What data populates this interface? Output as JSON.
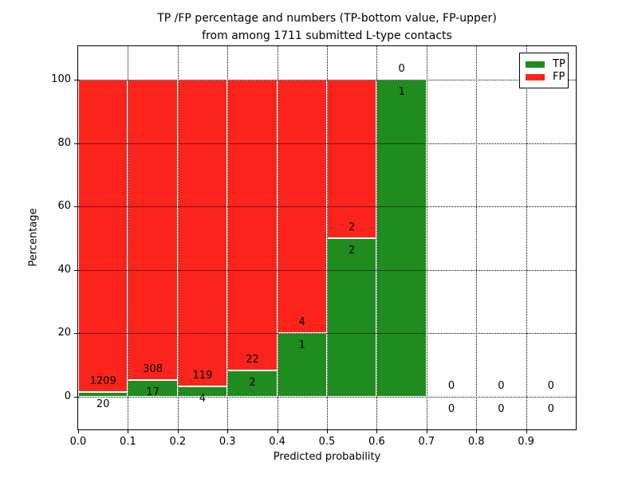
{
  "figure": {
    "title_line1": "TP /FP percentage and numbers (TP-bottom value, FP-upper)",
    "title_line2": "from among 1711 submitted L-type contacts",
    "xlabel": "Predicted probability",
    "ylabel": "Percentage"
  },
  "chart_data": {
    "type": "bar",
    "stacked": true,
    "normalized_to_percent": true,
    "title": "TP /FP percentage and numbers (TP-bottom value, FP-upper)\nfrom among 1711 submitted L-type contacts",
    "xlabel": "Predicted probability",
    "ylabel": "Percentage",
    "total_contacts": 1711,
    "x_tick_labels": [
      "0.0",
      "0.1",
      "0.2",
      "0.3",
      "0.4",
      "0.5",
      "0.6",
      "0.7",
      "0.8",
      "0.9"
    ],
    "y_tick_labels": [
      "0",
      "20",
      "40",
      "60",
      "80",
      "100"
    ],
    "y_ticks": [
      0,
      20,
      40,
      60,
      80,
      100
    ],
    "xlim": [
      0.0,
      1.0
    ],
    "ylim": [
      -10.5,
      110.5
    ],
    "grid": true,
    "legend_position": "upper right",
    "series": [
      {
        "name": "TP",
        "color": "#1e8c1e",
        "values": [
          20,
          17,
          4,
          2,
          1,
          2,
          1,
          0,
          0,
          0
        ]
      },
      {
        "name": "FP",
        "color": "#fb241c",
        "values": [
          1209,
          308,
          119,
          22,
          4,
          2,
          0,
          0,
          0,
          0
        ]
      }
    ],
    "bins": [
      {
        "range": [
          0.0,
          0.1
        ],
        "tp": 20,
        "fp": 1209
      },
      {
        "range": [
          0.1,
          0.2
        ],
        "tp": 17,
        "fp": 308
      },
      {
        "range": [
          0.2,
          0.3
        ],
        "tp": 4,
        "fp": 119
      },
      {
        "range": [
          0.3,
          0.4
        ],
        "tp": 2,
        "fp": 22
      },
      {
        "range": [
          0.4,
          0.5
        ],
        "tp": 1,
        "fp": 4
      },
      {
        "range": [
          0.5,
          0.6
        ],
        "tp": 2,
        "fp": 2
      },
      {
        "range": [
          0.6,
          0.7
        ],
        "tp": 1,
        "fp": 0
      },
      {
        "range": [
          0.7,
          0.8
        ],
        "tp": 0,
        "fp": 0
      },
      {
        "range": [
          0.8,
          0.9
        ],
        "tp": 0,
        "fp": 0
      },
      {
        "range": [
          0.9,
          1.0
        ],
        "tp": 0,
        "fp": 0
      }
    ],
    "legend": [
      {
        "label": "TP",
        "color": "#1e8c1e"
      },
      {
        "label": "FP",
        "color": "#fb241c"
      }
    ],
    "axis_color": "#000000",
    "background_color": "#ffffff"
  }
}
